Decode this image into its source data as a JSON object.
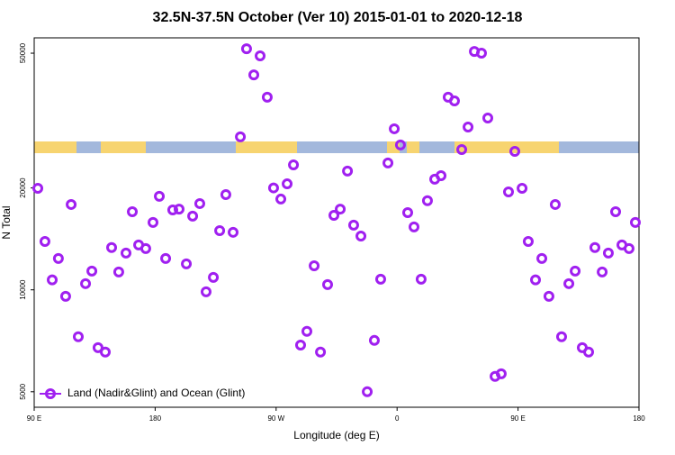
{
  "chart_data": {
    "type": "scatter",
    "title": "32.5N-37.5N October (Ver 10)   2015-01-01 to 2020-12-18",
    "x_label": "Longitude (deg E)",
    "y_label": "N Total",
    "xlim": [
      90,
      540
    ],
    "ylim": [
      4500,
      55500
    ],
    "y_log": true,
    "xticks": [
      {
        "value": 90,
        "label": "90 E"
      },
      180,
      {
        "value": 270,
        "label": "90 W"
      },
      {
        "value": 360,
        "label": "0"
      },
      {
        "value": 450,
        "label": "90 E"
      },
      {
        "value": 540,
        "label": "180"
      }
    ],
    "yticks": [
      5000,
      10000,
      20000,
      50000
    ],
    "legend_position": "lower left",
    "series": [
      {
        "name": "Land (Nadir&Glint) and Ocean (Glint)",
        "color": "#a020f0",
        "x": [
          92.7,
          98,
          103.4,
          108,
          113.4,
          117.5,
          122.8,
          128.2,
          132.9,
          137.5,
          142.9,
          147.6,
          152.9,
          158.3,
          163,
          167.7,
          173,
          178.4,
          183.1,
          187.8,
          193.1,
          197.8,
          203.2,
          207.9,
          213.2,
          217.9,
          223.3,
          228,
          232.6,
          238,
          243.4,
          248,
          253.4,
          258.1,
          263.4,
          268.1,
          273.5,
          278.2,
          282.9,
          288.2,
          292.9,
          298.3,
          303,
          308.3,
          313,
          317.7,
          323.1,
          327.7,
          333.1,
          337.8,
          343.1,
          347.8,
          353.2,
          357.9,
          362.5,
          367.9,
          372.6,
          377.9,
          382.6,
          388,
          392.7,
          398,
          402.7,
          408.1,
          412.8,
          417.5,
          422.8,
          427.5,
          432.9,
          437.5,
          442.9,
          447.6,
          453,
          457.6,
          463,
          467.7,
          473,
          477.7,
          482.4,
          487.8,
          492.5,
          497.8,
          502.5,
          507.2,
          512.6,
          517.2,
          522.6,
          527.3,
          532.6,
          537.3
        ],
        "values": [
          19950,
          13900,
          10700,
          12380,
          9570,
          17870,
          7270,
          10430,
          11360,
          6750,
          6550,
          13330,
          11290,
          12840,
          17010,
          13570,
          13240,
          15820,
          18890,
          12380,
          17220,
          17310,
          11930,
          16510,
          17980,
          9870,
          10880,
          14960,
          19110,
          14790,
          28300,
          51540,
          43150,
          49090,
          37070,
          20000,
          18540,
          20560,
          23390,
          6870,
          7540,
          11780,
          6550,
          10360,
          16600,
          17310,
          22420,
          15530,
          14420,
          5000,
          7090,
          10750,
          23700,
          29900,
          26780,
          16910,
          15340,
          10750,
          18330,
          21230,
          21730,
          37070,
          36140,
          25960,
          30260,
          50600,
          50000,
          32180,
          5550,
          5650,
          19460,
          25650,
          19950,
          13900,
          10700,
          12380,
          9570,
          17870,
          7270,
          10430,
          11360,
          6750,
          6550,
          13330,
          11290,
          12840,
          17010,
          13570,
          13240,
          15820
        ]
      }
    ]
  }
}
